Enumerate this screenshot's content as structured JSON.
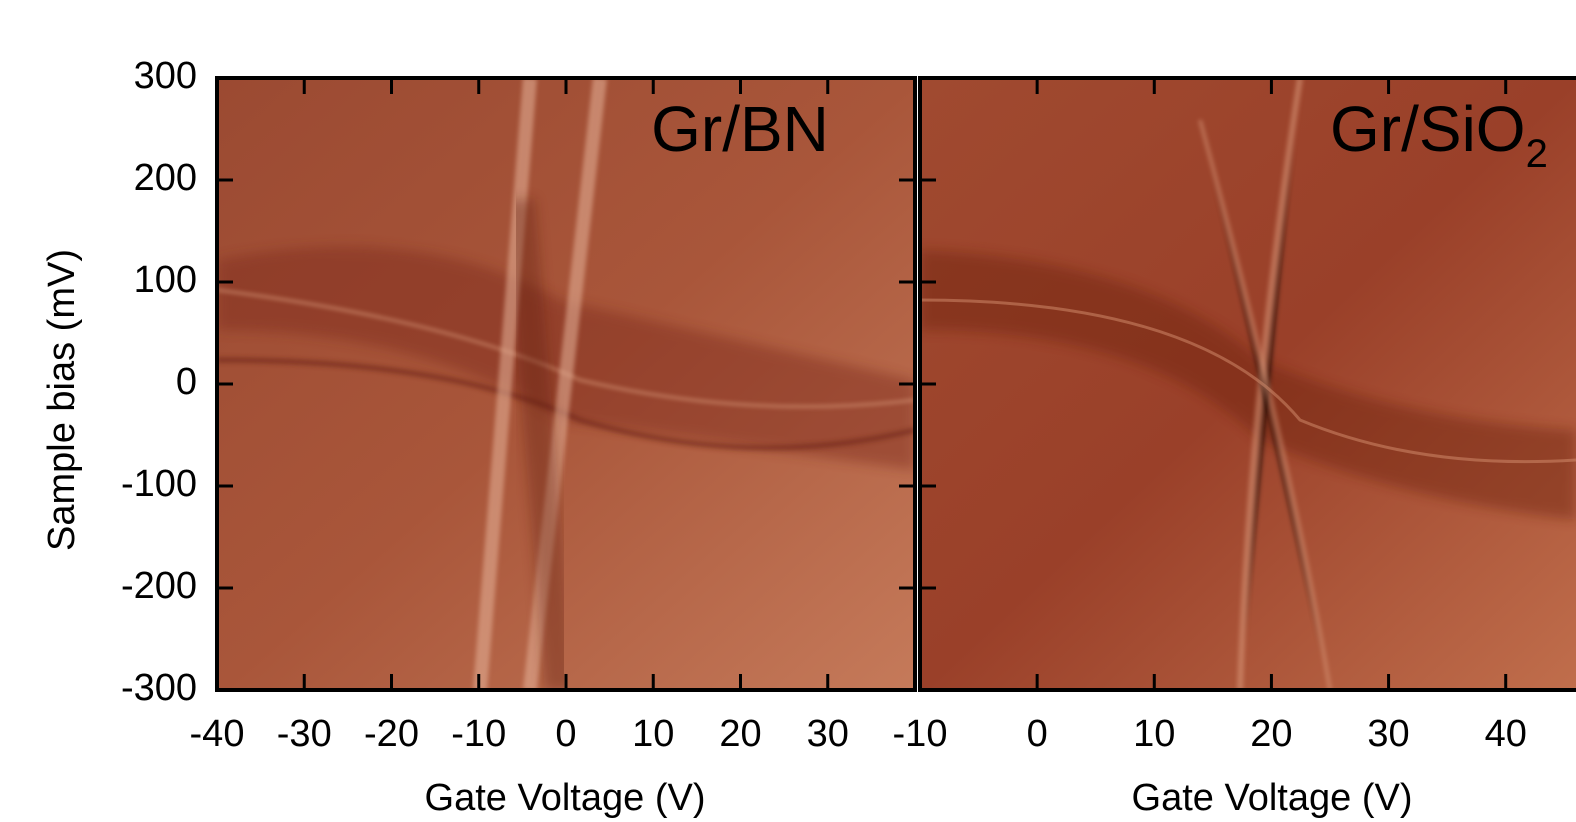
{
  "chart_data": [
    {
      "type": "heatmap",
      "annotation": "Gr/BN",
      "xlabel": "Gate Voltage (V)",
      "ylabel": "Sample bias (mV)",
      "xlim": [
        -40,
        40
      ],
      "xticks": [
        -40,
        -30,
        -20,
        -10,
        0,
        10,
        20,
        30
      ],
      "ylim": [
        -300,
        300
      ],
      "yticks": [
        -300,
        -200,
        -100,
        0,
        100,
        200,
        300
      ]
    },
    {
      "type": "heatmap",
      "annotation": {
        "text": "Gr/SiO",
        "sub": "2"
      },
      "xlabel": "Gate Voltage (V)",
      "xlim": [
        -10,
        46
      ],
      "xticks": [
        -10,
        0,
        10,
        20,
        30,
        40
      ],
      "ylim": [
        -300,
        300
      ],
      "yticks": [
        -300,
        -200,
        -100,
        0,
        100,
        200,
        300
      ]
    }
  ]
}
